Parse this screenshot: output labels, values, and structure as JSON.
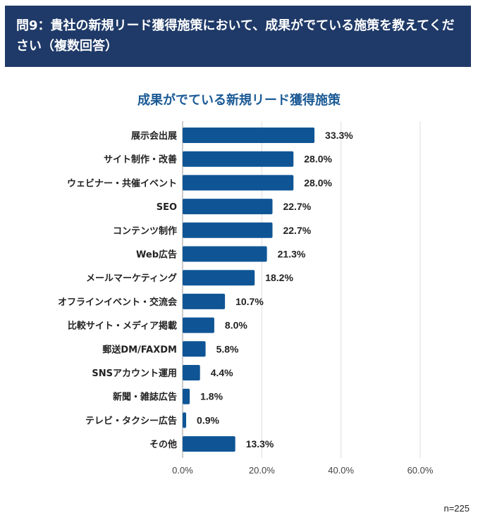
{
  "header": {
    "question": "問9：貴社の新規リード獲得施策において、成果がでている施策を教えてください（複数回答）"
  },
  "chart_data": {
    "type": "bar",
    "orientation": "horizontal",
    "title": "成果がでている新規リード獲得施策",
    "categories": [
      "展示会出展",
      "サイト制作・改善",
      "ウェビナー・共催イベント",
      "SEO",
      "コンテンツ制作",
      "Web広告",
      "メールマーケティング",
      "オフラインイベント・交流会",
      "比較サイト・メディア掲載",
      "郵送DM/FAXDM",
      "SNSアカウント運用",
      "新聞・雑誌広告",
      "テレビ・タクシー広告",
      "その他"
    ],
    "values": [
      33.3,
      28.0,
      28.0,
      22.7,
      22.7,
      21.3,
      18.2,
      10.7,
      8.0,
      5.8,
      4.4,
      1.8,
      0.9,
      13.3
    ],
    "data_labels": [
      "33.3%",
      "28.0%",
      "28.0%",
      "22.7%",
      "22.7%",
      "21.3%",
      "18.2%",
      "10.7%",
      "8.0%",
      "5.8%",
      "4.4%",
      "1.8%",
      "0.9%",
      "13.3%"
    ],
    "xlim": [
      0,
      60
    ],
    "xticks": [
      "0.0%",
      "20.0%",
      "40.0%",
      "60.0%"
    ],
    "grid": true,
    "bar_color": "#0f5595"
  },
  "footer": {
    "n": "n=225"
  }
}
